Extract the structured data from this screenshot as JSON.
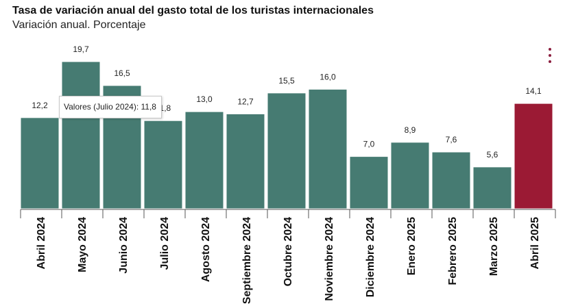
{
  "chart_data": {
    "type": "bar",
    "title": "Tasa de variación anual del gasto total de los turistas internacionales",
    "subtitle": "Variación anual. Porcentaje",
    "categories": [
      "Abril 2024",
      "Mayo 2024",
      "Junio 2024",
      "Julio 2024",
      "Agosto 2024",
      "Septiembre 2024",
      "Octubre 2024",
      "Noviembre 2024",
      "Diciembre 2024",
      "Enero 2025",
      "Febrero 2025",
      "Marzo 2025",
      "Abril 2025"
    ],
    "values": [
      12.2,
      19.7,
      16.5,
      11.8,
      13.0,
      12.7,
      15.5,
      16.0,
      7.0,
      8.9,
      7.6,
      5.6,
      14.1
    ],
    "value_labels": [
      "12,2",
      "19,7",
      "16,5",
      "11,8",
      "13,0",
      "12,7",
      "15,5",
      "16,0",
      "7,0",
      "8,9",
      "7,6",
      "5,6",
      "14,1"
    ],
    "highlight_index": 12,
    "ylim": [
      0,
      19.7
    ],
    "grid": false,
    "legend": "none",
    "colors": {
      "bar": "#467b72",
      "highlight": "#9b1a34",
      "bar_outline": "#ffffff",
      "axis": "#555555"
    }
  },
  "tooltip": {
    "text": "Valores (Julio 2024): 11,8"
  },
  "menu": {
    "icon": "vertical-ellipsis-icon",
    "color": "#8b1e3f"
  }
}
